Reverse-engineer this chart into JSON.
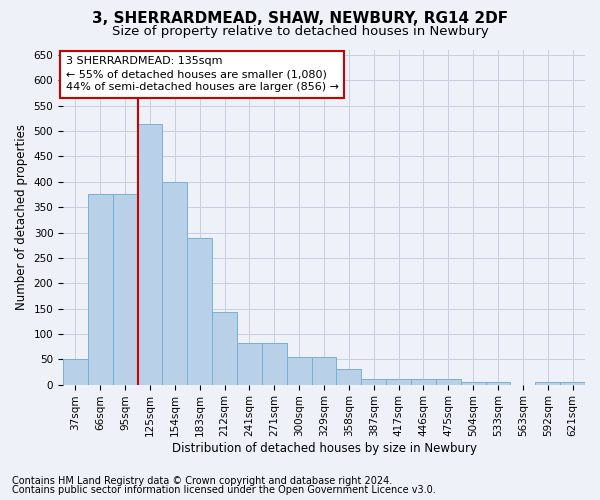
{
  "title1": "3, SHERRARDMEAD, SHAW, NEWBURY, RG14 2DF",
  "title2": "Size of property relative to detached houses in Newbury",
  "xlabel": "Distribution of detached houses by size in Newbury",
  "ylabel": "Number of detached properties",
  "categories": [
    "37sqm",
    "66sqm",
    "95sqm",
    "125sqm",
    "154sqm",
    "183sqm",
    "212sqm",
    "241sqm",
    "271sqm",
    "300sqm",
    "329sqm",
    "358sqm",
    "387sqm",
    "417sqm",
    "446sqm",
    "475sqm",
    "504sqm",
    "533sqm",
    "563sqm",
    "592sqm",
    "621sqm"
  ],
  "values": [
    50,
    375,
    375,
    515,
    400,
    290,
    143,
    83,
    83,
    55,
    55,
    30,
    12,
    12,
    12,
    12,
    5,
    5,
    0,
    5,
    5
  ],
  "bar_color": "#b8d0e8",
  "bar_edge_color": "#7aafd4",
  "vline_color": "#cc0000",
  "vline_x_index": 3,
  "annotation_line1": "3 SHERRARDMEAD: 135sqm",
  "annotation_line2": "← 55% of detached houses are smaller (1,080)",
  "annotation_line3": "44% of semi-detached houses are larger (856) →",
  "annotation_box_facecolor": "#ffffff",
  "annotation_box_edgecolor": "#cc0000",
  "ylim": [
    0,
    660
  ],
  "yticks": [
    0,
    50,
    100,
    150,
    200,
    250,
    300,
    350,
    400,
    450,
    500,
    550,
    600,
    650
  ],
  "footnote1": "Contains HM Land Registry data © Crown copyright and database right 2024.",
  "footnote2": "Contains public sector information licensed under the Open Government Licence v3.0.",
  "bg_color": "#eef2f8",
  "plot_bg_color": "#eef2f8",
  "grid_color": "#c5cfe0",
  "title1_fontsize": 11,
  "title2_fontsize": 9.5,
  "axis_label_fontsize": 8.5,
  "tick_fontsize": 7.5,
  "annotation_fontsize": 8,
  "footnote_fontsize": 7
}
